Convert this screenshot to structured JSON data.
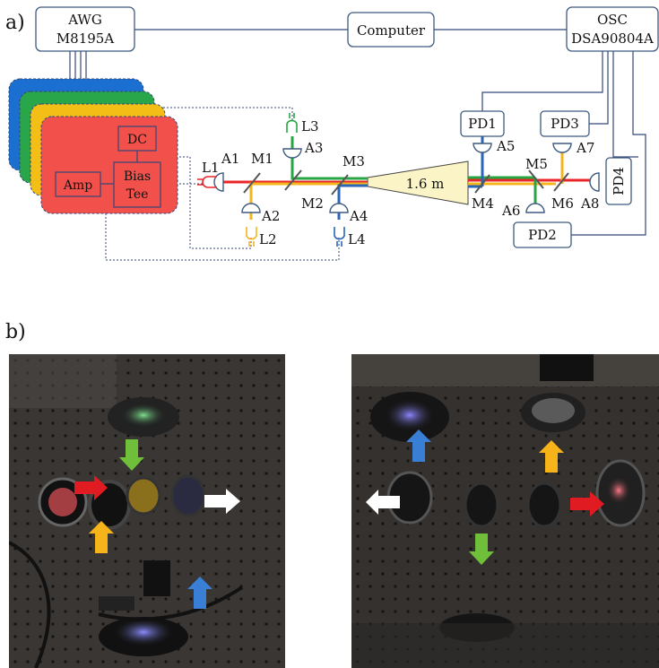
{
  "panel_labels": {
    "a": "a)",
    "b": "b)"
  },
  "equipment": {
    "awg_line1": "AWG",
    "awg_line2": "M8195A",
    "computer": "Computer",
    "osc_line1": "OSC",
    "osc_line2": "DSA90804A",
    "dc": "DC",
    "bias_line1": "Bias",
    "bias_line2": "Tee",
    "amp": "Amp",
    "distance": "1.6 m"
  },
  "detectors": {
    "pd1": "PD1",
    "pd2": "PD2",
    "pd3": "PD3",
    "pd4": "PD4"
  },
  "lasers": {
    "l1": "L1",
    "l2": "L2",
    "l3": "L3",
    "l4": "L4"
  },
  "lenses": {
    "a1": "A1",
    "a2": "A2",
    "a3": "A3",
    "a4": "A4",
    "a5": "A5",
    "a6": "A6",
    "a7": "A7",
    "a8": "A8"
  },
  "mirrors": {
    "m1": "M1",
    "m2": "M2",
    "m3": "M3",
    "m4": "M4",
    "m5": "M5",
    "m6": "M6"
  },
  "colors": {
    "red": "#e8262a",
    "yellow": "#f5b51c",
    "green": "#27a543",
    "blue": "#2a66b8",
    "white": "#ffffff",
    "box_stroke": "#3d5a80",
    "dash": "#34477a",
    "card_red": "#f2504a",
    "card_yellow": "#f3bf17",
    "card_green": "#2aa64a",
    "card_blue": "#1a6fd0",
    "beam_cone": "#fbf4c6"
  }
}
